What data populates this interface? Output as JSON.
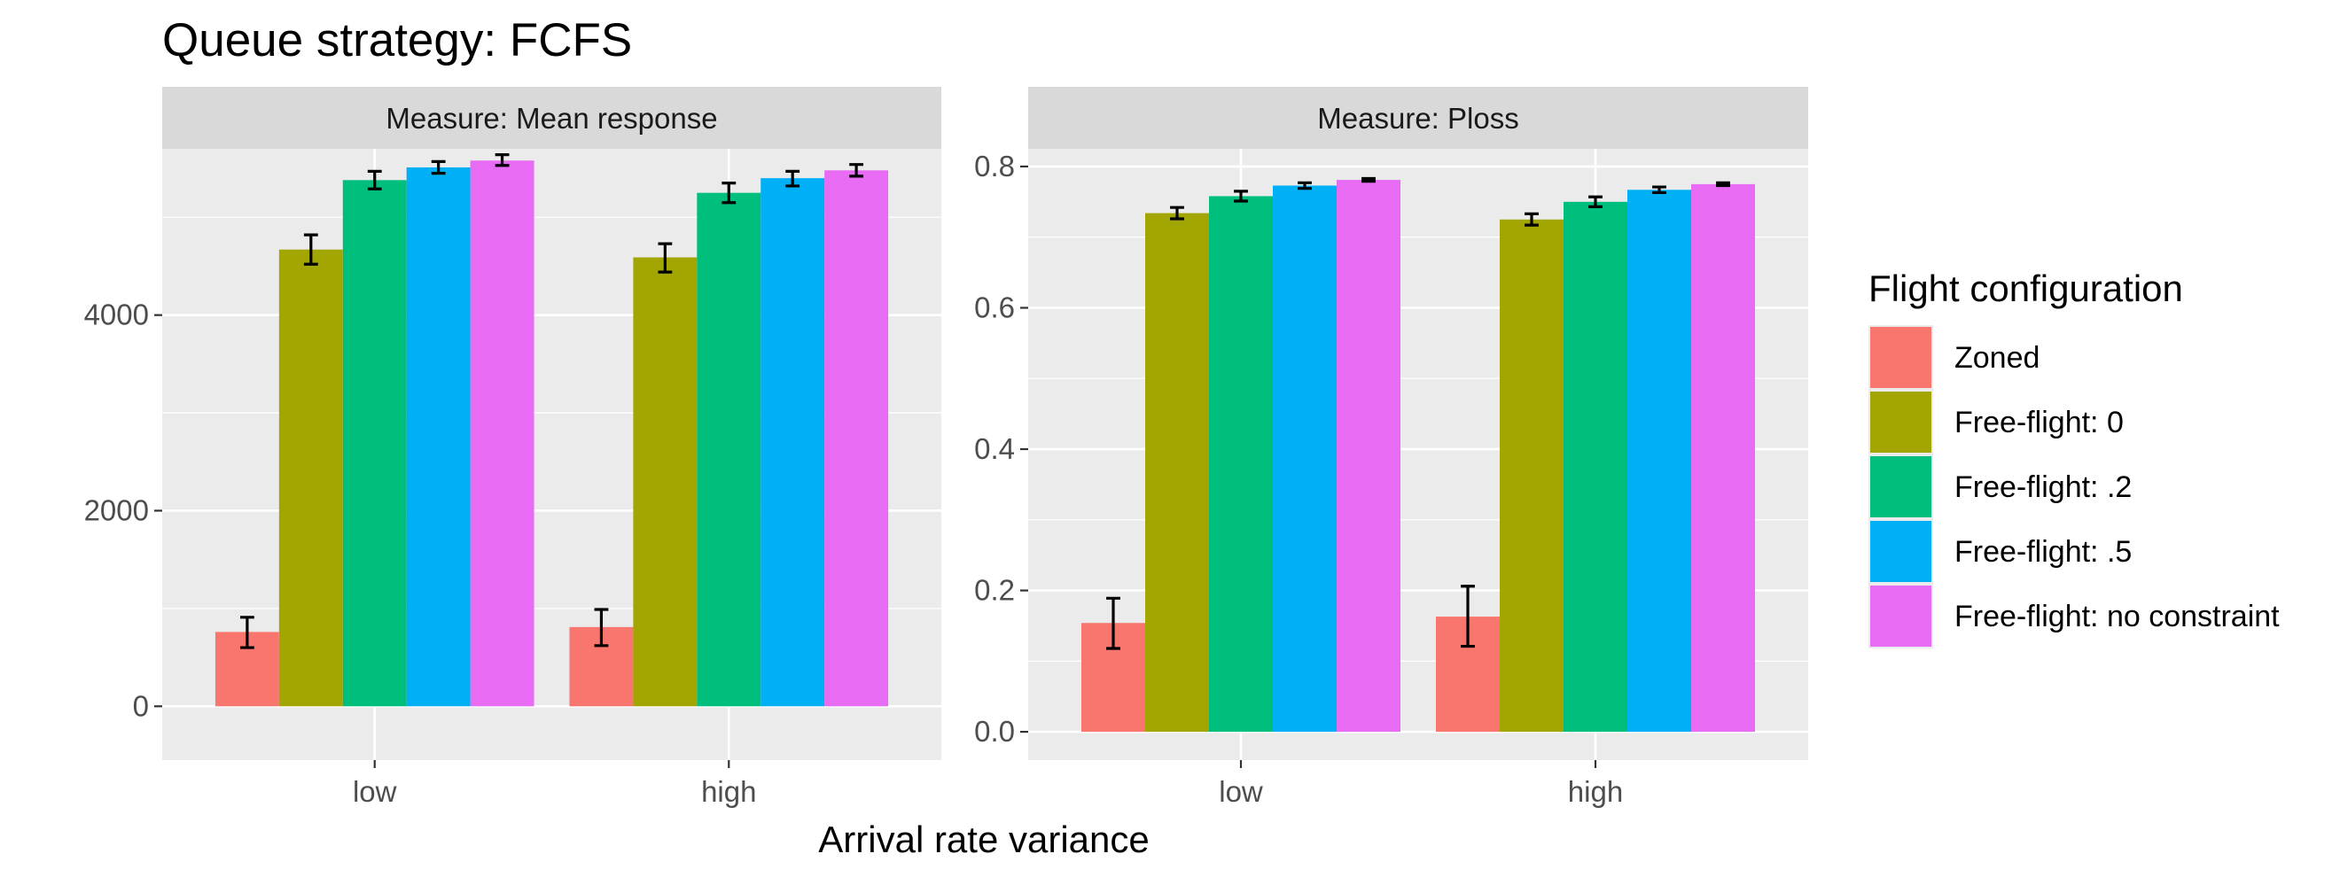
{
  "title": "Queue strategy: FCFS",
  "xlabel": "Arrival rate variance",
  "legend": {
    "title": "Flight configuration",
    "placement": "right",
    "entries": [
      {
        "label": "Zoned",
        "color": "#F8766D"
      },
      {
        "label": "Free-flight: 0",
        "color": "#A3A500"
      },
      {
        "label": "Free-flight: .2",
        "color": "#00BF7D"
      },
      {
        "label": "Free-flight: .5",
        "color": "#00B0F6"
      },
      {
        "label": "Free-flight: no constraint",
        "color": "#E76BF3"
      }
    ]
  },
  "chart_data": [
    {
      "type": "bar",
      "strip": "Measure: Mean response",
      "categories": [
        "low",
        "high"
      ],
      "ylim": [
        -550,
        5700
      ],
      "yticks": [
        0,
        2000,
        4000
      ],
      "ytick_labels": [
        "0",
        "2000",
        "4000"
      ],
      "grid": true,
      "series": [
        {
          "name": "Zoned",
          "values": [
            760,
            810
          ],
          "err_low": [
            600,
            620
          ],
          "err_high": [
            910,
            990
          ]
        },
        {
          "name": "Free-flight: 0",
          "values": [
            4670,
            4590
          ],
          "err_low": [
            4520,
            4440
          ],
          "err_high": [
            4820,
            4730
          ]
        },
        {
          "name": "Free-flight: .2",
          "values": [
            5380,
            5250
          ],
          "err_low": [
            5290,
            5150
          ],
          "err_high": [
            5470,
            5350
          ]
        },
        {
          "name": "Free-flight: .5",
          "values": [
            5510,
            5400
          ],
          "err_low": [
            5450,
            5320
          ],
          "err_high": [
            5570,
            5470
          ]
        },
        {
          "name": "Free-flight: no constraint",
          "values": [
            5580,
            5480
          ],
          "err_low": [
            5530,
            5420
          ],
          "err_high": [
            5640,
            5540
          ]
        }
      ]
    },
    {
      "type": "bar",
      "strip": "Measure: Ploss",
      "categories": [
        "low",
        "high"
      ],
      "ylim": [
        -0.04,
        0.825
      ],
      "yticks": [
        0.0,
        0.2,
        0.4,
        0.6,
        0.8
      ],
      "ytick_labels": [
        "0.0",
        "0.2",
        "0.4",
        "0.6",
        "0.8"
      ],
      "grid": true,
      "series": [
        {
          "name": "Zoned",
          "values": [
            0.154,
            0.163
          ],
          "err_low": [
            0.118,
            0.121
          ],
          "err_high": [
            0.189,
            0.206
          ]
        },
        {
          "name": "Free-flight: 0",
          "values": [
            0.734,
            0.725
          ],
          "err_low": [
            0.726,
            0.717
          ],
          "err_high": [
            0.742,
            0.733
          ]
        },
        {
          "name": "Free-flight: .2",
          "values": [
            0.758,
            0.75
          ],
          "err_low": [
            0.751,
            0.743
          ],
          "err_high": [
            0.765,
            0.757
          ]
        },
        {
          "name": "Free-flight: .5",
          "values": [
            0.773,
            0.767
          ],
          "err_low": [
            0.769,
            0.763
          ],
          "err_high": [
            0.777,
            0.771
          ]
        },
        {
          "name": "Free-flight: no constraint",
          "values": [
            0.781,
            0.775
          ],
          "err_low": [
            0.779,
            0.773
          ],
          "err_high": [
            0.783,
            0.777
          ]
        }
      ]
    }
  ]
}
